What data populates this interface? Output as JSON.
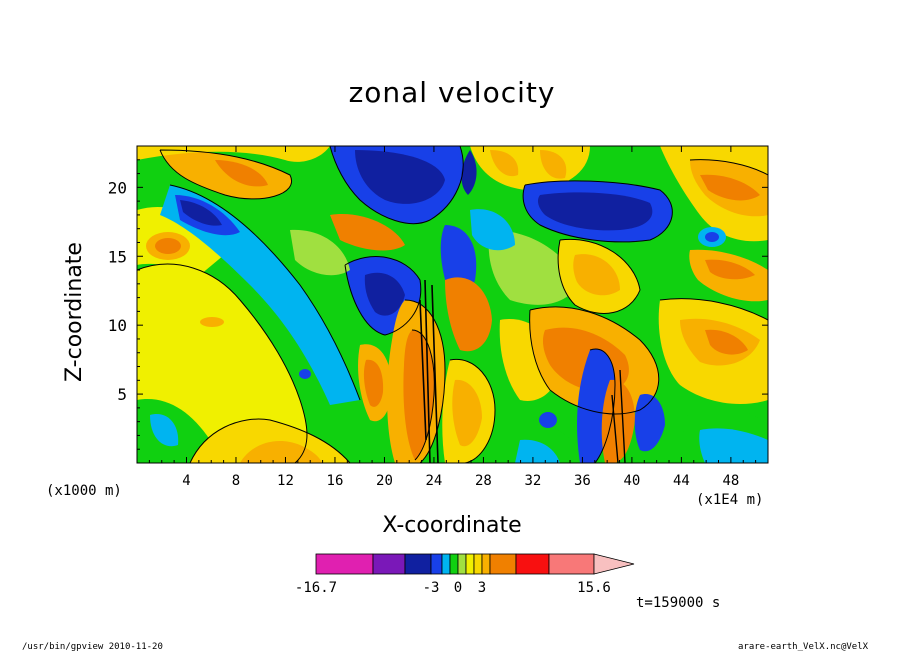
{
  "chart_data": {
    "type": "heatmap",
    "title": "zonal velocity",
    "xlabel": "X-coordinate",
    "ylabel": "Z-coordinate",
    "x_unit": "(x1E4 m)",
    "z_unit": "(x1000 m)",
    "x_ticks": [
      "4",
      "8",
      "12",
      "16",
      "20",
      "24",
      "28",
      "32",
      "36",
      "40",
      "44",
      "48"
    ],
    "z_ticks": [
      "5",
      "10",
      "15",
      "20"
    ],
    "xlim": [
      0,
      51
    ],
    "zlim": [
      0,
      23
    ],
    "colorbar": {
      "min": -16.7,
      "max": 15.6,
      "tick_labels": [
        "-16.7",
        "-3",
        "0",
        "3",
        "15.6"
      ],
      "colors": [
        "#e020b0",
        "#7a18b8",
        "#1020a0",
        "#1840e8",
        "#00b4f0",
        "#10d010",
        "#a0e040",
        "#f0f000",
        "#f8d800",
        "#f8b000",
        "#f08000",
        "#f81010",
        "#f87878",
        "#f8c0c0"
      ]
    },
    "time": "t=159000 s",
    "footer_left": "/usr/bin/gpview   2010-11-20",
    "footer_right": "arare-earth_VelX.nc@VelX"
  }
}
